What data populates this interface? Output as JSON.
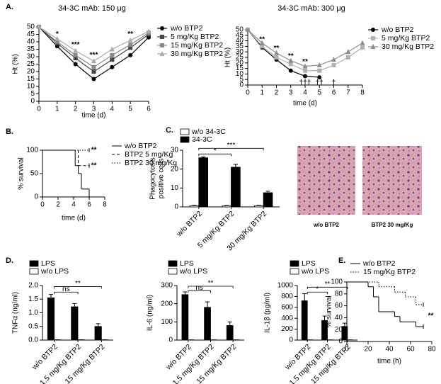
{
  "panel_labels": [
    "A.",
    "B.",
    "C.",
    "D.",
    "E."
  ],
  "image_captions": [
    "w/o BTP2",
    "BTP2 30 mg/Kg"
  ],
  "chart_data": [
    {
      "type": "line",
      "title": "34-3C  mAb: 150 μg",
      "x": [
        0,
        1,
        2,
        3,
        4,
        5,
        6
      ],
      "xlim": [
        0,
        6
      ],
      "xticks": [
        0,
        1,
        2,
        3,
        4,
        5,
        6
      ],
      "ylim": [
        0,
        50
      ],
      "yticks": [
        0,
        5,
        10,
        15,
        20,
        25,
        30,
        35,
        40,
        45,
        50
      ],
      "xlabel": "time (d)",
      "ylabel": "Ht (%)",
      "series": [
        {
          "name": "w/o BTP2",
          "color": "#000000",
          "marker": "circle",
          "values": [
            50,
            37,
            25,
            15,
            23,
            31,
            43
          ]
        },
        {
          "name": "5 mg/Kg BTP2",
          "color": "#444444",
          "marker": "square",
          "values": [
            50,
            39,
            29,
            20,
            28,
            36,
            45
          ]
        },
        {
          "name": "15 mg/Kg BTP2",
          "color": "#888888",
          "marker": "square",
          "values": [
            50,
            40,
            31,
            23,
            31,
            38,
            46
          ]
        },
        {
          "name": "30 mg/Kg BTP2",
          "color": "#aaaaaa",
          "marker": "triangle",
          "values": [
            50,
            42,
            34,
            27,
            35,
            41,
            47
          ]
        }
      ],
      "annotations": [
        {
          "text": "*",
          "x": 1,
          "y": 45
        },
        {
          "text": "***",
          "x": 2,
          "y": 38
        },
        {
          "text": "***",
          "x": 3,
          "y": 31
        },
        {
          "text": "**",
          "x": 5,
          "y": 45
        }
      ]
    },
    {
      "type": "line",
      "title": "34-3C  mAb: 300 μg",
      "x": [
        0,
        1,
        2,
        3,
        4,
        5,
        6,
        7,
        8
      ],
      "xlim": [
        0,
        8
      ],
      "xticks": [
        0,
        1,
        2,
        3,
        4,
        5,
        6,
        7,
        8
      ],
      "ylim": [
        0,
        50
      ],
      "yticks": [
        0,
        5,
        10,
        15,
        20,
        25,
        30,
        35,
        40,
        45,
        50
      ],
      "xlabel": "time (d)",
      "ylabel": "Ht (%)",
      "series": [
        {
          "name": "w/o BTP2",
          "color": "#000000",
          "marker": "circle",
          "values": [
            50,
            34,
            23,
            13,
            8,
            7,
            null,
            null,
            null
          ]
        },
        {
          "name": "5 mg/Kg BTP2",
          "color": "#b0b0b0",
          "marker": "square",
          "values": [
            50,
            35,
            25,
            19,
            13,
            13,
            18,
            25,
            34
          ]
        },
        {
          "name": "30 mg/Kg BTP2",
          "color": "#8c8c8c",
          "marker": "triangle",
          "values": [
            50,
            38,
            29,
            22,
            17,
            18,
            23,
            30,
            38
          ]
        }
      ],
      "annotations": [
        {
          "text": "**",
          "x": 1,
          "y": 41
        },
        {
          "text": "**",
          "x": 2,
          "y": 33
        },
        {
          "text": "**",
          "x": 3,
          "y": 26
        },
        {
          "text": "**",
          "x": 4,
          "y": 21
        },
        {
          "text": "†††",
          "x": 4,
          "y": 2
        },
        {
          "text": "††",
          "x": 5,
          "y": 2
        },
        {
          "text": "†",
          "x": 6,
          "y": 2
        }
      ]
    },
    {
      "type": "step",
      "xlim": [
        0,
        8
      ],
      "xticks": [
        0,
        2,
        4,
        6,
        8
      ],
      "ylim": [
        0,
        100
      ],
      "yticks": [
        0,
        50,
        100
      ],
      "xlabel": "time (d)",
      "ylabel": "% survival",
      "series": [
        {
          "name": "w/o BTP2",
          "color": "#000000",
          "line_style": "solid",
          "x": [
            0,
            4.2,
            4.6,
            5,
            6
          ],
          "values": [
            100,
            67,
            50,
            17,
            0
          ]
        },
        {
          "name": "BTP2 5 mg/Kg",
          "color": "#000000",
          "line_style": "dashed",
          "x": [
            0,
            4.6,
            6
          ],
          "values": [
            100,
            67,
            67
          ]
        },
        {
          "name": "BTP2 30 mg/Kg",
          "color": "#000000",
          "line_style": "dotted",
          "x": [
            0,
            6
          ],
          "values": [
            100,
            100
          ]
        }
      ],
      "annotations": [
        {
          "text": "**",
          "x": 6.6,
          "y": 100
        },
        {
          "text": "**",
          "x": 6.6,
          "y": 67
        }
      ]
    },
    {
      "type": "bar",
      "categories": [
        "w/o BTP2",
        "5 mg/Kg BTP2",
        "30 mg/Kg BTP2"
      ],
      "ylim": [
        0,
        30
      ],
      "yticks": [
        0,
        10,
        20,
        30
      ],
      "ylabel": [
        "Phagocytosis",
        "positive cells"
      ],
      "series": [
        {
          "name": "w/o 34-3C",
          "color": "#ffffff",
          "values": [
            0.6,
            0.5,
            0.6
          ],
          "errors": [
            0.2,
            0.2,
            0.2
          ]
        },
        {
          "name": "34-3C",
          "color": "#000000",
          "values": [
            26,
            21,
            7.5
          ],
          "errors": [
            0.4,
            1.5,
            0.8
          ]
        }
      ],
      "brackets": [
        {
          "from": 0,
          "to": 1,
          "y": 28,
          "label": "*"
        },
        {
          "from": 0,
          "to": 2,
          "y": 31,
          "label": "***"
        }
      ]
    },
    {
      "type": "bar",
      "categories": [
        "w/o BTP2",
        "1.5 mg/Kg BTP2",
        "15 mg/Kg BTP2"
      ],
      "ylim": [
        0,
        2
      ],
      "yticks": [
        {
          "value": 0,
          "label": "0.0"
        },
        0.5,
        {
          "value": 1,
          "label": "1.0"
        },
        1.5,
        {
          "value": 2,
          "label": "2.0"
        }
      ],
      "ylabel": "TNFα (ng/ml)",
      "series": [
        {
          "name": "LPS",
          "color": "#000000",
          "values": [
            1.55,
            1.22,
            0.5
          ],
          "errors": [
            0.12,
            0.12,
            0.1
          ]
        },
        {
          "name": "w/o LPS",
          "color": "#ffffff",
          "values": [
            0.01,
            0.01,
            0.01
          ],
          "errors": [
            0,
            0,
            0
          ]
        }
      ],
      "brackets": [
        {
          "from": 0,
          "to": 1,
          "y": 1.76,
          "label": "ns"
        },
        {
          "from": 0,
          "to": 2,
          "y": 1.96,
          "label": "**"
        }
      ]
    },
    {
      "type": "bar",
      "categories": [
        "w/o BTP2",
        "1.5 mg/Kg BTP2",
        "15 mg/Kg BTP2"
      ],
      "ylim": [
        0,
        300
      ],
      "yticks": [
        0,
        100,
        200,
        300
      ],
      "ylabel": "IL-6 (ng/ml)",
      "series": [
        {
          "name": "LPS",
          "color": "#000000",
          "values": [
            250,
            180,
            80
          ],
          "errors": [
            15,
            30,
            20
          ]
        },
        {
          "name": "w/o LPS",
          "color": "#ffffff",
          "values": [
            1,
            1,
            1
          ],
          "errors": [
            0,
            0,
            0
          ]
        }
      ],
      "brackets": [
        {
          "from": 0,
          "to": 1,
          "y": 272,
          "label": "ns"
        },
        {
          "from": 0,
          "to": 2,
          "y": 296,
          "label": "**"
        }
      ]
    },
    {
      "type": "bar",
      "categories": [
        "w/o BTP2",
        "1.5 mg/Kg BTP2",
        "15 mg/Kg BTP2"
      ],
      "ylim": [
        0,
        1000
      ],
      "yticks": [
        0,
        200,
        400,
        600,
        800,
        1000
      ],
      "ylabel": "IL-1β (pg/ml)",
      "series": [
        {
          "name": "LPS",
          "color": "#000000",
          "values": [
            720,
            360,
            250
          ],
          "errors": [
            130,
            80,
            60
          ]
        },
        {
          "name": "w/o LPS",
          "color": "#ffffff",
          "values": [
            3,
            3,
            3
          ],
          "errors": [
            0,
            0,
            0
          ]
        }
      ],
      "brackets": [
        {
          "from": 0,
          "to": 1,
          "y": 880,
          "label": "*"
        },
        {
          "from": 0,
          "to": 2,
          "y": 970,
          "label": "**"
        }
      ]
    },
    {
      "type": "step",
      "xlim": [
        0,
        80
      ],
      "xticks": [
        0,
        20,
        40,
        60,
        80
      ],
      "ylim": [
        0,
        100
      ],
      "yticks": [
        0,
        20,
        40,
        60,
        80,
        100
      ],
      "xlabel": "time (h)",
      "ylabel": "% survival",
      "series": [
        {
          "name": "w/o BTP2",
          "color": "#000000",
          "line_style": "solid",
          "x": [
            0,
            20,
            25,
            30,
            45,
            50,
            65,
            72
          ],
          "values": [
            100,
            92,
            75,
            50,
            42,
            33,
            25,
            25
          ]
        },
        {
          "name": "15 mg/Kg BTP2",
          "color": "#000000",
          "line_style": "dotted",
          "x": [
            0,
            30,
            45,
            55,
            65,
            72
          ],
          "values": [
            100,
            92,
            83,
            75,
            62,
            62
          ]
        }
      ],
      "annotations": [
        {
          "text": "**",
          "x": 79,
          "y": 43
        }
      ]
    }
  ]
}
